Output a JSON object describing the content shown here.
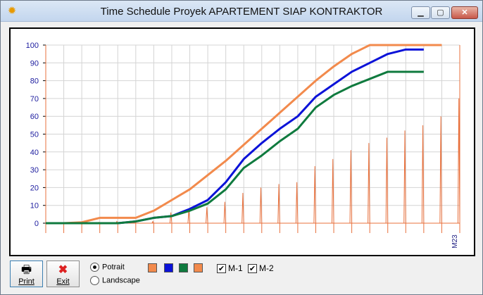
{
  "window": {
    "title": "Time Schedule Proyek APARTEMENT SIAP KONTRAKTOR"
  },
  "chart_data": {
    "type": "line",
    "ylim": [
      0,
      100
    ],
    "y_ticks": [
      "0",
      "10",
      "20",
      "30",
      "40",
      "50",
      "60",
      "70",
      "80",
      "90",
      "100"
    ],
    "x_tick_label": "M23",
    "grid": true,
    "series": [
      {
        "color": "#f28a4c",
        "x": [
          1,
          2,
          3,
          4,
          5,
          6,
          7,
          8,
          9,
          10,
          11,
          12,
          13,
          14,
          15,
          16,
          17,
          18,
          19,
          20,
          21,
          22,
          23
        ],
        "values": [
          0,
          0,
          0.5,
          3,
          3,
          3,
          7,
          13,
          19,
          27,
          35,
          44,
          53,
          62,
          71,
          80,
          88,
          95,
          100,
          100,
          100,
          100,
          100
        ]
      },
      {
        "color": "#0b12d8",
        "x": [
          1,
          2,
          3,
          4,
          5,
          6,
          7,
          8,
          9,
          10,
          11,
          12,
          13,
          14,
          15,
          16,
          17,
          18,
          19,
          20,
          21,
          22
        ],
        "values": [
          0,
          0,
          0,
          0,
          0,
          1,
          3,
          4,
          8,
          13,
          23,
          36,
          45,
          53,
          60,
          71,
          78,
          85,
          90,
          95,
          97.5,
          97.5
        ]
      },
      {
        "color": "#0f7a3e",
        "x": [
          1,
          2,
          3,
          4,
          5,
          6,
          7,
          8,
          9,
          10,
          11,
          12,
          13,
          14,
          15,
          16,
          17,
          18,
          19,
          20,
          21,
          22
        ],
        "values": [
          0,
          0,
          0,
          0,
          0,
          1,
          3,
          4,
          7,
          11,
          19,
          31,
          38,
          46,
          53,
          65,
          72,
          77,
          81,
          85,
          85,
          85
        ]
      }
    ],
    "bars": {
      "color": "#e8703c",
      "x": [
        1,
        2,
        3,
        4,
        5,
        6,
        7,
        8,
        9,
        10,
        11,
        12,
        13,
        14,
        15,
        16,
        17,
        18,
        19,
        20,
        21,
        22,
        23
      ],
      "values": [
        0,
        0,
        0.5,
        1,
        1,
        1,
        6,
        8,
        9,
        12,
        17,
        20,
        22,
        23,
        32,
        36,
        41,
        45,
        48,
        52,
        55,
        60,
        70
      ]
    }
  },
  "controls": {
    "print_label": "Print",
    "exit_label": "Exit",
    "orientation_options": [
      "Potrait",
      "Landscape"
    ],
    "orientation_selected": "Potrait",
    "swatch_colors": [
      "#f28a4c",
      "#0b12d8",
      "#0f7a3e",
      "#f28a4c"
    ],
    "m1_label": "M-1",
    "m2_label": "M-2",
    "m1_checked": true,
    "m2_checked": true
  }
}
